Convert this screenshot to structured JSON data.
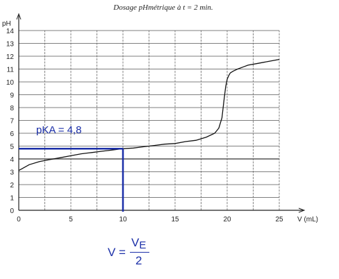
{
  "chart_data": {
    "type": "line",
    "title": "Dosage pHmétrique à t = 2 min.",
    "ylabel": "pH",
    "xlabel": "V (mL)",
    "xlim": [
      0,
      25
    ],
    "ylim": [
      0,
      14
    ],
    "x_ticks": [
      "0",
      "5",
      "10",
      "15",
      "20",
      "25"
    ],
    "y_ticks": [
      "0",
      "1",
      "2",
      "3",
      "4",
      "5",
      "6",
      "7",
      "8",
      "9",
      "10",
      "11",
      "12",
      "13",
      "14"
    ],
    "grid": true,
    "series": [
      {
        "x": [
          0,
          1,
          2,
          3,
          4,
          5,
          6,
          7,
          8,
          9,
          10,
          11,
          12,
          13,
          14,
          15,
          16,
          17,
          18,
          18.8,
          19.2,
          19.5,
          19.7,
          19.85,
          20,
          20.15,
          20.3,
          20.6,
          21,
          21.5,
          22,
          23,
          24,
          25
        ],
        "y": [
          3.1,
          3.55,
          3.8,
          3.95,
          4.1,
          4.25,
          4.4,
          4.5,
          4.6,
          4.7,
          4.8,
          4.85,
          4.95,
          5.05,
          5.15,
          5.2,
          5.35,
          5.45,
          5.7,
          6.0,
          6.4,
          7.2,
          8.6,
          9.6,
          10.2,
          10.5,
          10.7,
          10.85,
          11.0,
          11.15,
          11.3,
          11.45,
          11.6,
          11.75
        ]
      }
    ],
    "annotation": {
      "label": "pKA = 4,8",
      "x": 10,
      "y": 4.8
    }
  },
  "formula": {
    "lhs": "V =",
    "numerator": "V",
    "numerator_sub": "E",
    "denominator": "2"
  }
}
